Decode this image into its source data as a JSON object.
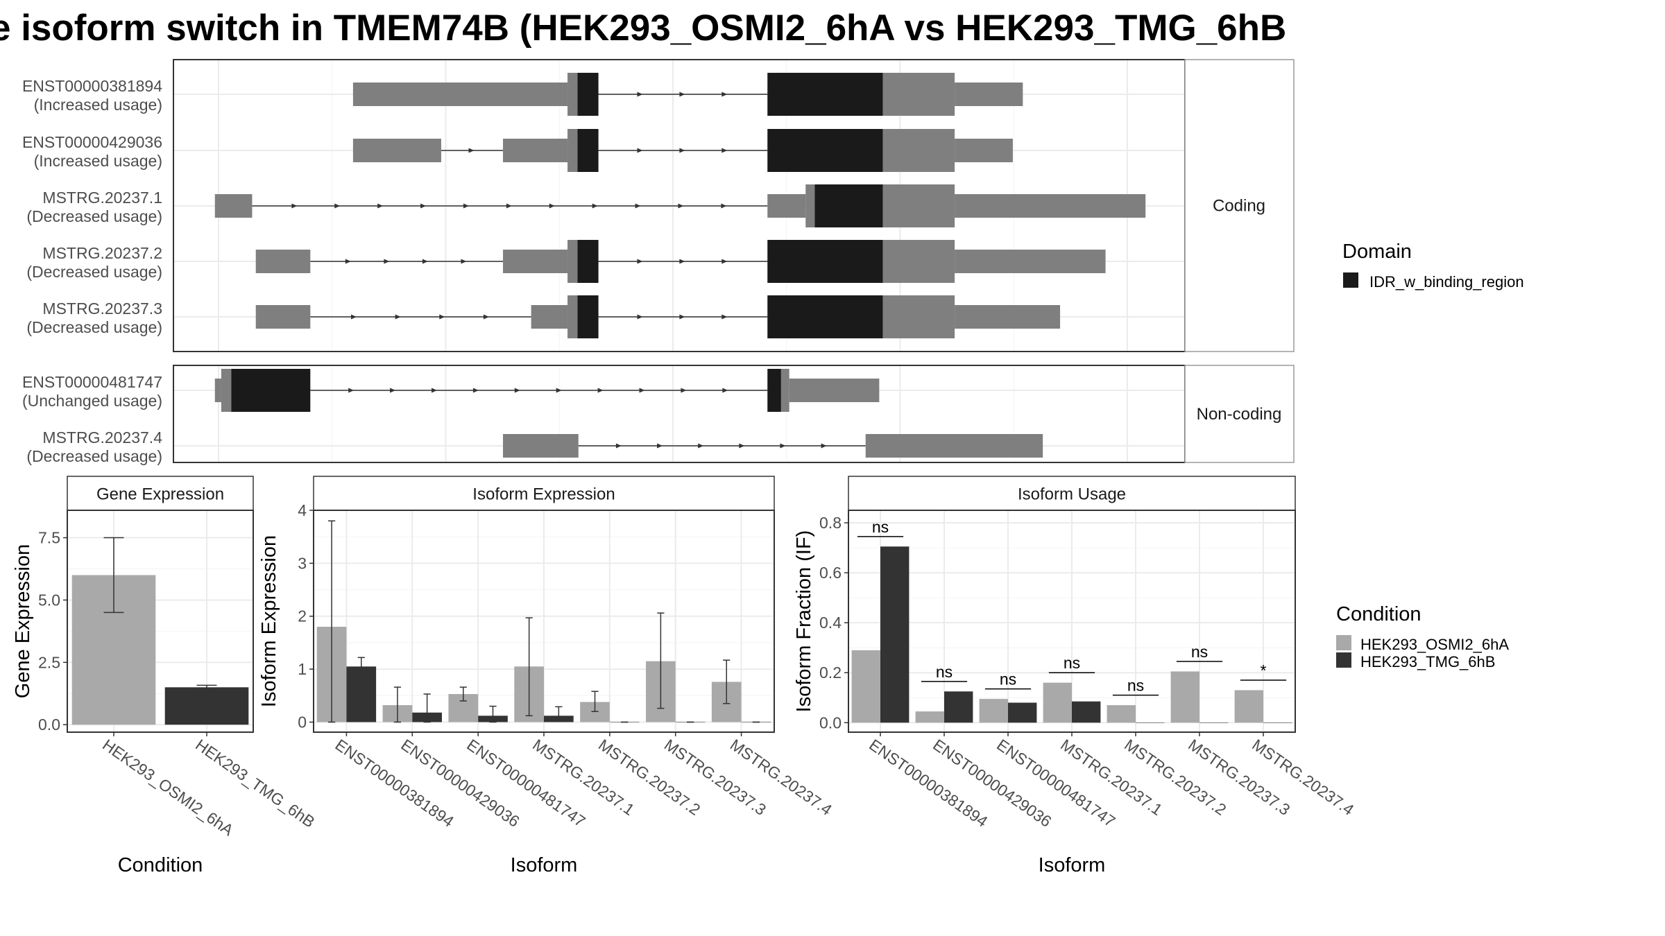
{
  "title": "e isoform switch in TMEM74B (HEK293_OSMI2_6hA vs HEK293_TMG_6hB",
  "colors": {
    "exon_grey": "#7f7f7f",
    "domain_black": "#1a1a1a",
    "cond_a": "#a9a9a9",
    "cond_b": "#333333",
    "grid": "#ebebeb",
    "strip_border": "#9a9a9a"
  },
  "legend_domain": {
    "title": "Domain",
    "entries": [
      "IDR_w_binding_region"
    ]
  },
  "legend_condition": {
    "title": "Condition",
    "entries": [
      "HEK293_OSMI2_6hA",
      "HEK293_TMG_6hB"
    ]
  },
  "transcripts": {
    "coding_label": "Coding",
    "noncoding_label": "Non-coding",
    "rows": [
      {
        "id": "ENST00000381894",
        "usage": "(Increased usage)",
        "group": "coding",
        "exons": [
          [
            0.148,
            0.384,
            "u"
          ],
          [
            0.384,
            0.395,
            "c"
          ],
          [
            0.395,
            0.418,
            "d"
          ],
          [
            0.604,
            0.731,
            "d"
          ],
          [
            0.731,
            0.81,
            "c"
          ],
          [
            0.81,
            0.885,
            "u"
          ]
        ]
      },
      {
        "id": "ENST00000429036",
        "usage": "(Increased usage)",
        "group": "coding",
        "exons": [
          [
            0.148,
            0.245,
            "u"
          ],
          [
            0.313,
            0.384,
            "u"
          ],
          [
            0.384,
            0.395,
            "c"
          ],
          [
            0.395,
            0.418,
            "d"
          ],
          [
            0.604,
            0.731,
            "d"
          ],
          [
            0.731,
            0.81,
            "c"
          ],
          [
            0.81,
            0.874,
            "u"
          ]
        ]
      },
      {
        "id": "MSTRG.20237.1",
        "usage": "(Decreased usage)",
        "group": "coding",
        "exons": [
          [
            -0.004,
            0.037,
            "u"
          ],
          [
            0.604,
            0.646,
            "u"
          ],
          [
            0.646,
            0.656,
            "c"
          ],
          [
            0.656,
            0.731,
            "d"
          ],
          [
            0.731,
            0.81,
            "c"
          ],
          [
            0.81,
            1.02,
            "u"
          ]
        ]
      },
      {
        "id": "MSTRG.20237.2",
        "usage": "(Decreased usage)",
        "group": "coding",
        "exons": [
          [
            0.041,
            0.101,
            "u"
          ],
          [
            0.313,
            0.384,
            "u"
          ],
          [
            0.384,
            0.395,
            "c"
          ],
          [
            0.395,
            0.418,
            "d"
          ],
          [
            0.604,
            0.731,
            "d"
          ],
          [
            0.731,
            0.81,
            "c"
          ],
          [
            0.81,
            0.976,
            "u"
          ]
        ]
      },
      {
        "id": "MSTRG.20237.3",
        "usage": "(Decreased usage)",
        "group": "coding",
        "exons": [
          [
            0.041,
            0.101,
            "u"
          ],
          [
            0.344,
            0.384,
            "u"
          ],
          [
            0.384,
            0.395,
            "c"
          ],
          [
            0.395,
            0.418,
            "d"
          ],
          [
            0.604,
            0.731,
            "d"
          ],
          [
            0.731,
            0.81,
            "c"
          ],
          [
            0.81,
            0.926,
            "u"
          ]
        ]
      },
      {
        "id": "ENST00000481747",
        "usage": "(Unchanged usage)",
        "group": "noncoding",
        "exons": [
          [
            -0.004,
            0.003,
            "u"
          ],
          [
            0.003,
            0.014,
            "c"
          ],
          [
            0.014,
            0.101,
            "d"
          ],
          [
            0.604,
            0.619,
            "d"
          ],
          [
            0.619,
            0.628,
            "c"
          ],
          [
            0.628,
            0.727,
            "u"
          ]
        ]
      },
      {
        "id": "MSTRG.20237.4",
        "usage": "(Decreased usage)",
        "group": "noncoding",
        "exons": [
          [
            0.313,
            0.396,
            "u"
          ],
          [
            0.712,
            0.907,
            "u"
          ]
        ]
      }
    ]
  },
  "chart_data": [
    {
      "type": "bar",
      "title": "Gene Expression",
      "xlabel": "Condition",
      "ylabel": "Gene Expression",
      "ylim": [
        -0.3,
        8.6
      ],
      "yticks": [
        0.0,
        2.5,
        5.0,
        7.5
      ],
      "ytick_labels": [
        "0.0",
        "2.5",
        "5.0",
        "7.5"
      ],
      "categories": [
        "HEK293_OSMI2_6hA",
        "HEK293_TMG_6hB"
      ],
      "values": [
        6.0,
        1.5
      ],
      "errors": [
        [
          4.5,
          7.5
        ],
        [
          1.42,
          1.58
        ]
      ]
    },
    {
      "type": "bar",
      "title": "Isoform Expression",
      "xlabel": "Isoform",
      "ylabel": "Isoform Expression",
      "ylim": [
        -0.19,
        4.0
      ],
      "yticks": [
        0,
        1,
        2,
        3,
        4
      ],
      "ytick_labels": [
        "0",
        "1",
        "2",
        "3",
        "4"
      ],
      "categories": [
        "ENST00000381894",
        "ENST00000429036",
        "ENST00000481747",
        "MSTRG.20237.1",
        "MSTRG.20237.2",
        "MSTRG.20237.3",
        "MSTRG.20237.4"
      ],
      "series": [
        {
          "name": "HEK293_OSMI2_6hA",
          "values": [
            1.8,
            0.32,
            0.53,
            1.05,
            0.38,
            1.15,
            0.76
          ],
          "errors": [
            [
              0.0,
              3.8
            ],
            [
              0.0,
              0.66
            ],
            [
              0.4,
              0.66
            ],
            [
              0.12,
              1.97
            ],
            [
              0.2,
              0.58
            ],
            [
              0.26,
              2.06
            ],
            [
              0.35,
              1.17
            ]
          ]
        },
        {
          "name": "HEK293_TMG_6hB",
          "values": [
            1.05,
            0.18,
            0.12,
            0.12,
            0.0,
            0.0,
            0.0
          ],
          "errors": [
            [
              0.88,
              1.22
            ],
            [
              0.0,
              0.53
            ],
            [
              0.0,
              0.3
            ],
            [
              0.02,
              0.29
            ],
            [
              0.0,
              0.0
            ],
            [
              0.0,
              0.0
            ],
            [
              0.0,
              0.0
            ]
          ]
        }
      ]
    },
    {
      "type": "bar",
      "title": "Isoform Usage",
      "xlabel": "Isoform",
      "ylabel": "Isoform Fraction (IF)",
      "ylim": [
        -0.038,
        0.85
      ],
      "yticks": [
        0.0,
        0.2,
        0.4,
        0.6,
        0.8
      ],
      "ytick_labels": [
        "0.0",
        "0.2",
        "0.4",
        "0.6",
        "0.8"
      ],
      "categories": [
        "ENST00000381894",
        "ENST00000429036",
        "ENST00000481747",
        "MSTRG.20237.1",
        "MSTRG.20237.2",
        "MSTRG.20237.3",
        "MSTRG.20237.4"
      ],
      "series": [
        {
          "name": "HEK293_OSMI2_6hA",
          "values": [
            0.29,
            0.045,
            0.095,
            0.16,
            0.07,
            0.205,
            0.13
          ]
        },
        {
          "name": "HEK293_TMG_6hB",
          "values": [
            0.705,
            0.125,
            0.08,
            0.085,
            0.0,
            0.0,
            0.0
          ]
        }
      ],
      "significance": [
        "ns",
        "ns",
        "ns",
        "ns",
        "ns",
        "ns",
        "*"
      ],
      "sig_y": [
        0.745,
        0.165,
        0.135,
        0.2,
        0.11,
        0.245,
        0.17
      ]
    }
  ]
}
